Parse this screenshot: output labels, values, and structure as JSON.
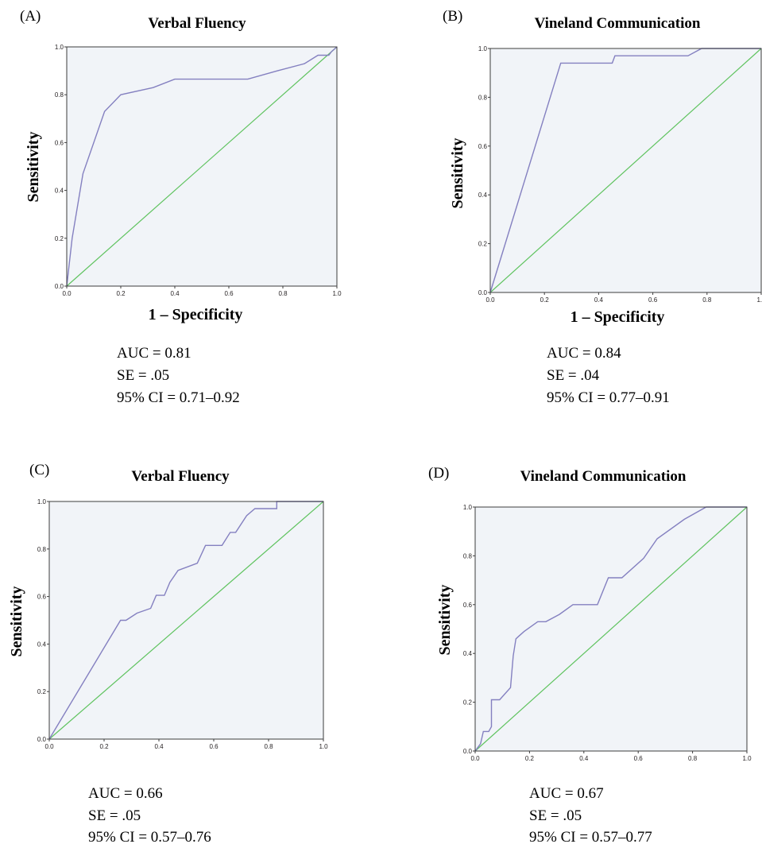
{
  "colors": {
    "plot_bg": "#f1f4f8",
    "roc_line": "#8480c0",
    "reference_line": "#5fc35f",
    "axis": "#3c3c3c",
    "text": "#231f20"
  },
  "chart_data": [
    {
      "type": "line",
      "panel_label": "(A)",
      "title": "Verbal Fluency",
      "xlabel": "1 – Specificity",
      "ylabel": "Sensitivity",
      "xlim": [
        0,
        1
      ],
      "ylim": [
        0,
        1
      ],
      "ticks": [
        "0.0",
        "0.2",
        "0.4",
        "0.6",
        "0.8",
        "1.0"
      ],
      "series": [
        {
          "role": "roc",
          "x": [
            0,
            0.02,
            0.06,
            0.14,
            0.2,
            0.32,
            0.4,
            0.67,
            0.78,
            0.88,
            0.93,
            0.97,
            0.98,
            1.0
          ],
          "y": [
            0,
            0.2,
            0.47,
            0.73,
            0.8,
            0.83,
            0.865,
            0.865,
            0.9,
            0.93,
            0.965,
            0.965,
            0.98,
            1.0
          ]
        },
        {
          "role": "reference",
          "x": [
            0,
            1
          ],
          "y": [
            0,
            1
          ]
        }
      ],
      "stats": {
        "auc": "AUC = 0.81",
        "se": "SE = .05",
        "ci": "95% CI = 0.71–0.92"
      }
    },
    {
      "type": "line",
      "panel_label": "(B)",
      "title": "Vineland Communication",
      "xlabel": "1 – Specificity",
      "ylabel": "Sensitivity",
      "xlim": [
        0,
        1
      ],
      "ylim": [
        0,
        1
      ],
      "ticks": [
        "0.0",
        "0.2",
        "0.4",
        "0.6",
        "0.8",
        "1.0"
      ],
      "series": [
        {
          "role": "roc",
          "x": [
            0,
            0.26,
            0.45,
            0.46,
            0.73,
            0.78,
            1.0
          ],
          "y": [
            0,
            0.94,
            0.94,
            0.97,
            0.97,
            1.0,
            1.0
          ]
        },
        {
          "role": "reference",
          "x": [
            0,
            1
          ],
          "y": [
            0,
            1
          ]
        }
      ],
      "stats": {
        "auc": "AUC = 0.84",
        "se": "SE = .04",
        "ci": "95% CI = 0.77–0.91"
      }
    },
    {
      "type": "line",
      "panel_label": "(C)",
      "title": "Verbal Fluency",
      "xlabel": "",
      "ylabel": "Sensitivity",
      "xlim": [
        0,
        1
      ],
      "ylim": [
        0,
        1
      ],
      "ticks": [
        "0.0",
        "0.2",
        "0.4",
        "0.6",
        "0.8",
        "1.0"
      ],
      "series": [
        {
          "role": "roc",
          "x": [
            0,
            0.26,
            0.28,
            0.32,
            0.37,
            0.39,
            0.42,
            0.44,
            0.47,
            0.54,
            0.57,
            0.63,
            0.66,
            0.68,
            0.72,
            0.75,
            0.79,
            0.83,
            0.83,
            1.0
          ],
          "y": [
            0,
            0.5,
            0.5,
            0.53,
            0.55,
            0.605,
            0.605,
            0.66,
            0.71,
            0.74,
            0.815,
            0.815,
            0.87,
            0.87,
            0.94,
            0.97,
            0.97,
            0.97,
            1.0,
            1.0
          ]
        },
        {
          "role": "reference",
          "x": [
            0,
            1
          ],
          "y": [
            0,
            1
          ]
        }
      ],
      "stats": {
        "auc": "AUC = 0.66",
        "se": "SE = .05",
        "ci": "95% CI = 0.57–0.76"
      }
    },
    {
      "type": "line",
      "panel_label": "(D)",
      "title": "Vineland Communication",
      "xlabel": "",
      "ylabel": "Sensitivity",
      "xlim": [
        0,
        1
      ],
      "ylim": [
        0,
        1
      ],
      "ticks": [
        "0.0",
        "0.2",
        "0.4",
        "0.6",
        "0.8",
        "1.0"
      ],
      "series": [
        {
          "role": "roc",
          "x": [
            0,
            0.02,
            0.03,
            0.05,
            0.06,
            0.06,
            0.09,
            0.13,
            0.14,
            0.15,
            0.16,
            0.18,
            0.23,
            0.26,
            0.31,
            0.36,
            0.4,
            0.45,
            0.49,
            0.54,
            0.62,
            0.67,
            0.77,
            0.85,
            1.0
          ],
          "y": [
            0,
            0.03,
            0.08,
            0.08,
            0.1,
            0.21,
            0.21,
            0.26,
            0.39,
            0.46,
            0.47,
            0.49,
            0.53,
            0.53,
            0.56,
            0.6,
            0.6,
            0.6,
            0.71,
            0.71,
            0.79,
            0.87,
            0.95,
            1.0,
            1.0
          ]
        },
        {
          "role": "reference",
          "x": [
            0,
            1
          ],
          "y": [
            0,
            1
          ]
        }
      ],
      "stats": {
        "auc": "AUC = 0.67",
        "se": "SE = .05",
        "ci": "95% CI = 0.57–0.77"
      }
    }
  ]
}
